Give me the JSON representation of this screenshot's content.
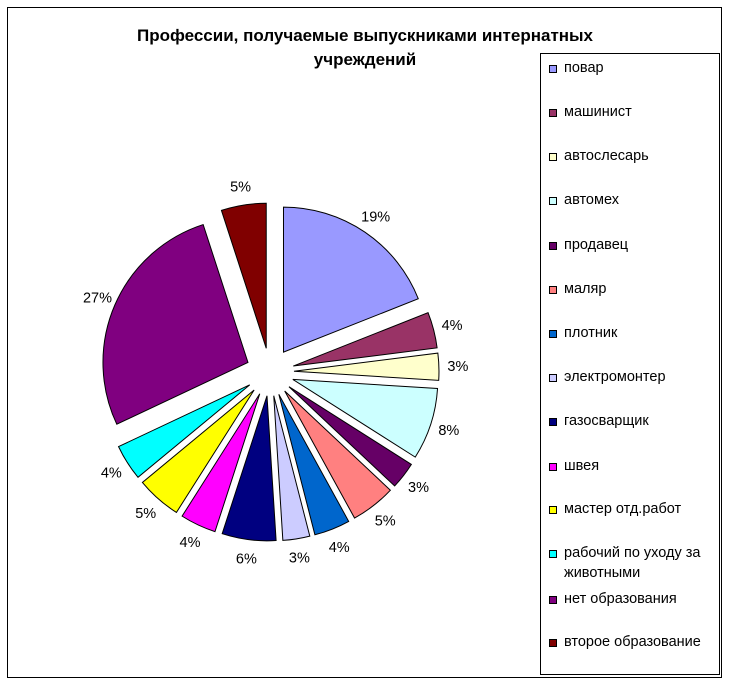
{
  "chart_data": {
    "type": "pie",
    "title": "Профессии, получаемые выпускниками интернатных учреждений",
    "legend_position": "right",
    "exploded": true,
    "slices": [
      {
        "label": "повар",
        "value": 19,
        "display": "19%",
        "color": "#9999FF"
      },
      {
        "label": "машинист",
        "value": 4,
        "display": "4%",
        "color": "#993366"
      },
      {
        "label": "автослесарь",
        "value": 3,
        "display": "3%",
        "color": "#FFFFCC"
      },
      {
        "label": "автомех",
        "value": 8,
        "display": "8%",
        "color": "#CCFFFF"
      },
      {
        "label": "продавец",
        "value": 3,
        "display": "3%",
        "color": "#660066"
      },
      {
        "label": "маляр",
        "value": 5,
        "display": "5%",
        "color": "#FF8080"
      },
      {
        "label": "плотник",
        "value": 4,
        "display": "4%",
        "color": "#0066CC"
      },
      {
        "label": "электромонтер",
        "value": 3,
        "display": "3%",
        "color": "#CCCCFF"
      },
      {
        "label": "газосварщик",
        "value": 6,
        "display": "6%",
        "color": "#000080"
      },
      {
        "label": "швея",
        "value": 4,
        "display": "4%",
        "color": "#FF00FF"
      },
      {
        "label": "мастер отд.работ",
        "value": 5,
        "display": "5%",
        "color": "#FFFF00"
      },
      {
        "label": "рабочий по уходу за животными",
        "value": 4,
        "display": "4%",
        "color": "#00FFFF"
      },
      {
        "label": "нет образования",
        "value": 27,
        "display": "27%",
        "color": "#800080"
      },
      {
        "label": "второе образование",
        "value": 5,
        "display": "5%",
        "color": "#800000"
      }
    ]
  }
}
